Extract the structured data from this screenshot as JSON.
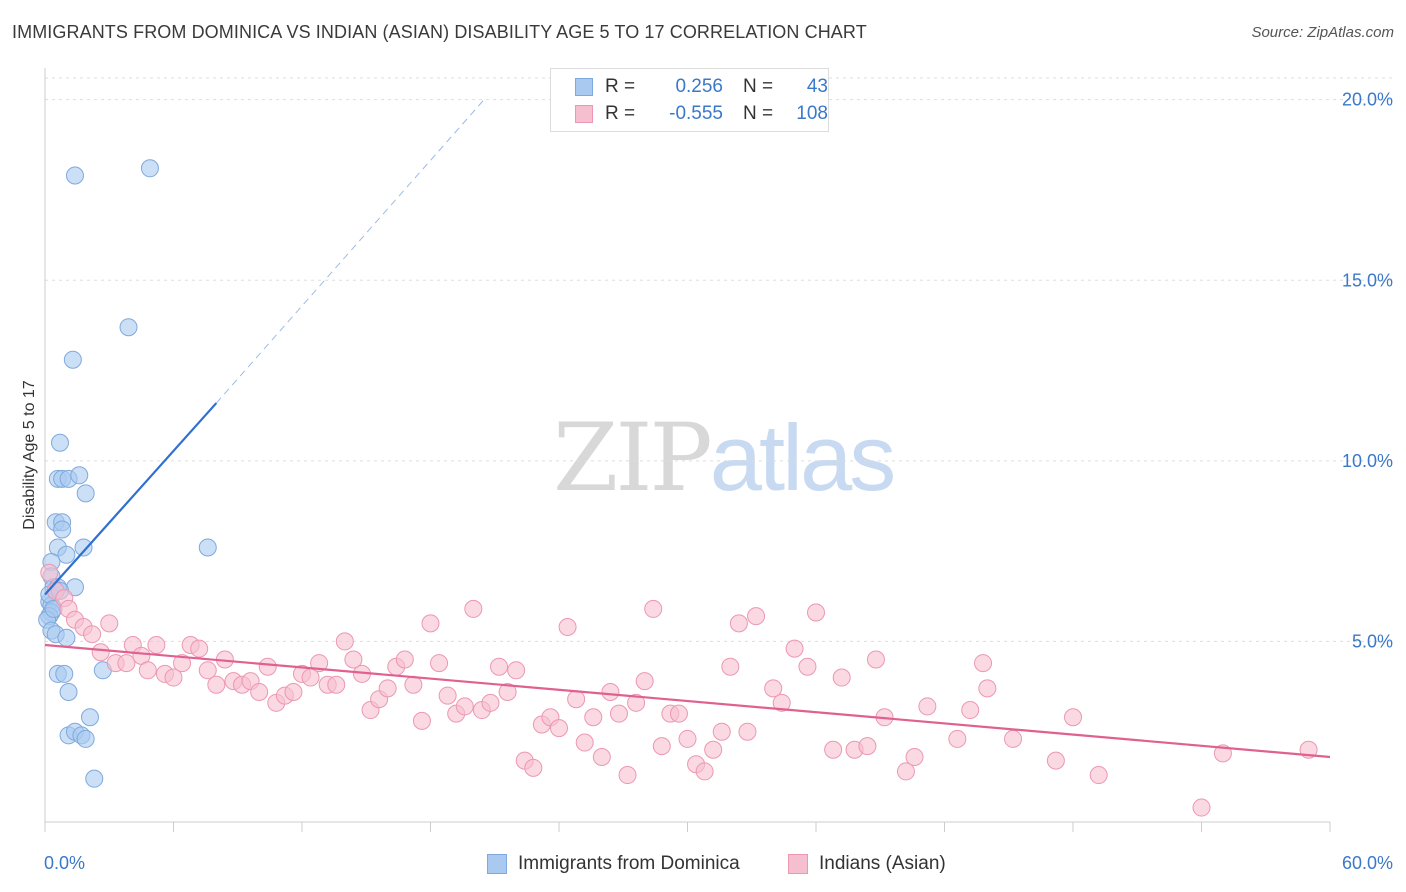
{
  "header": {
    "title": "IMMIGRANTS FROM DOMINICA VS INDIAN (ASIAN) DISABILITY AGE 5 TO 17 CORRELATION CHART",
    "source": "Source: ZipAtlas.com"
  },
  "watermark": {
    "zip": "ZIP",
    "atlas": "atlas"
  },
  "legend": {
    "rows": [
      {
        "r_label": "R =",
        "r_value": "0.256",
        "n_label": "N =",
        "n_value": "43"
      },
      {
        "r_label": "R =",
        "r_value": "-0.555",
        "n_label": "N =",
        "n_value": "108"
      }
    ]
  },
  "bottom_legend": {
    "items": [
      {
        "label": "Immigrants from Dominica"
      },
      {
        "label": "Indians (Asian)"
      }
    ]
  },
  "colors": {
    "blue_fill": "#a9c9f0",
    "blue_stroke": "#7fa9dc",
    "blue_line": "#2e6fd0",
    "pink_fill": "#f6bfd0",
    "pink_stroke": "#ec97b3",
    "pink_line": "#e0618f",
    "tick_text": "#3a78c9",
    "grid": "#dddddd"
  },
  "chart_data": {
    "type": "scatter",
    "title": "IMMIGRANTS FROM DOMINICA VS INDIAN (ASIAN) DISABILITY AGE 5 TO 17 CORRELATION CHART",
    "xlabel": "",
    "ylabel": "Disability Age 5 to 17",
    "xlim": [
      0,
      60
    ],
    "ylim": [
      0,
      20.6
    ],
    "x_tick_labels": [
      "0.0%",
      "60.0%"
    ],
    "y_ticks": [
      5,
      10,
      15,
      20
    ],
    "y_tick_labels": [
      "5.0%",
      "10.0%",
      "15.0%",
      "20.0%"
    ],
    "grid": true,
    "legend_position": "top-center",
    "series": [
      {
        "name": "Immigrants from Dominica",
        "color": "#a9c9f0",
        "r": 0.256,
        "n": 43,
        "trend": {
          "x0": 0.0,
          "y0": 6.3,
          "x1": 8.0,
          "y1": 11.6,
          "dashed_to": [
            20.5,
            20.0
          ]
        },
        "points": [
          [
            1.4,
            17.9
          ],
          [
            4.9,
            18.1
          ],
          [
            3.9,
            13.7
          ],
          [
            1.3,
            12.8
          ],
          [
            0.7,
            10.5
          ],
          [
            0.6,
            9.5
          ],
          [
            0.8,
            9.5
          ],
          [
            1.1,
            9.5
          ],
          [
            1.6,
            9.6
          ],
          [
            1.9,
            9.1
          ],
          [
            0.5,
            8.3
          ],
          [
            0.8,
            8.3
          ],
          [
            0.8,
            8.1
          ],
          [
            0.6,
            7.6
          ],
          [
            1.8,
            7.6
          ],
          [
            7.6,
            7.6
          ],
          [
            1.0,
            7.4
          ],
          [
            0.3,
            7.2
          ],
          [
            0.3,
            6.8
          ],
          [
            0.4,
            6.5
          ],
          [
            0.6,
            6.5
          ],
          [
            1.4,
            6.5
          ],
          [
            0.2,
            6.1
          ],
          [
            0.3,
            6.0
          ],
          [
            0.3,
            5.8
          ],
          [
            0.2,
            5.7
          ],
          [
            0.1,
            5.6
          ],
          [
            0.3,
            5.3
          ],
          [
            0.5,
            5.2
          ],
          [
            1.0,
            5.1
          ],
          [
            0.6,
            4.1
          ],
          [
            0.9,
            4.1
          ],
          [
            2.7,
            4.2
          ],
          [
            1.1,
            3.6
          ],
          [
            2.1,
            2.9
          ],
          [
            1.1,
            2.4
          ],
          [
            1.4,
            2.5
          ],
          [
            1.7,
            2.4
          ],
          [
            1.9,
            2.3
          ],
          [
            2.3,
            1.2
          ],
          [
            0.2,
            6.3
          ],
          [
            0.4,
            5.9
          ],
          [
            0.7,
            6.4
          ]
        ]
      },
      {
        "name": "Indians (Asian)",
        "color": "#f6bfd0",
        "r": -0.555,
        "n": 108,
        "trend": {
          "x0": 0.0,
          "y0": 4.9,
          "x1": 60.0,
          "y1": 1.8
        },
        "points": [
          [
            0.2,
            6.9
          ],
          [
            0.5,
            6.4
          ],
          [
            0.9,
            6.2
          ],
          [
            1.1,
            5.9
          ],
          [
            1.4,
            5.6
          ],
          [
            1.8,
            5.4
          ],
          [
            2.2,
            5.2
          ],
          [
            2.6,
            4.7
          ],
          [
            3.0,
            5.5
          ],
          [
            3.3,
            4.4
          ],
          [
            3.8,
            4.4
          ],
          [
            4.1,
            4.9
          ],
          [
            4.5,
            4.6
          ],
          [
            4.8,
            4.2
          ],
          [
            5.2,
            4.9
          ],
          [
            5.6,
            4.1
          ],
          [
            6.0,
            4.0
          ],
          [
            6.4,
            4.4
          ],
          [
            6.8,
            4.9
          ],
          [
            7.2,
            4.8
          ],
          [
            7.6,
            4.2
          ],
          [
            8.0,
            3.8
          ],
          [
            8.4,
            4.5
          ],
          [
            8.8,
            3.9
          ],
          [
            9.2,
            3.8
          ],
          [
            9.6,
            3.9
          ],
          [
            10.0,
            3.6
          ],
          [
            10.4,
            4.3
          ],
          [
            10.8,
            3.3
          ],
          [
            11.2,
            3.5
          ],
          [
            11.6,
            3.6
          ],
          [
            12.0,
            4.1
          ],
          [
            12.4,
            4.0
          ],
          [
            12.8,
            4.4
          ],
          [
            13.2,
            3.8
          ],
          [
            13.6,
            3.8
          ],
          [
            14.0,
            5.0
          ],
          [
            14.4,
            4.5
          ],
          [
            14.8,
            4.1
          ],
          [
            15.2,
            3.1
          ],
          [
            15.6,
            3.4
          ],
          [
            16.0,
            3.7
          ],
          [
            16.4,
            4.3
          ],
          [
            16.8,
            4.5
          ],
          [
            17.2,
            3.8
          ],
          [
            17.6,
            2.8
          ],
          [
            18.0,
            5.5
          ],
          [
            18.4,
            4.4
          ],
          [
            18.8,
            3.5
          ],
          [
            19.2,
            3.0
          ],
          [
            19.6,
            3.2
          ],
          [
            20.0,
            5.9
          ],
          [
            20.4,
            3.1
          ],
          [
            20.8,
            3.3
          ],
          [
            21.2,
            4.3
          ],
          [
            21.6,
            3.6
          ],
          [
            22.0,
            4.2
          ],
          [
            22.4,
            1.7
          ],
          [
            22.8,
            1.5
          ],
          [
            23.2,
            2.7
          ],
          [
            23.6,
            2.9
          ],
          [
            24.0,
            2.6
          ],
          [
            24.4,
            5.4
          ],
          [
            24.8,
            3.4
          ],
          [
            25.2,
            2.2
          ],
          [
            25.6,
            2.9
          ],
          [
            26.0,
            1.8
          ],
          [
            26.4,
            3.6
          ],
          [
            26.8,
            3.0
          ],
          [
            27.2,
            1.3
          ],
          [
            27.6,
            3.3
          ],
          [
            28.0,
            3.9
          ],
          [
            28.4,
            5.9
          ],
          [
            28.8,
            2.1
          ],
          [
            29.2,
            3.0
          ],
          [
            29.6,
            3.0
          ],
          [
            30.0,
            2.3
          ],
          [
            30.4,
            1.6
          ],
          [
            30.8,
            1.4
          ],
          [
            31.2,
            2.0
          ],
          [
            31.6,
            2.5
          ],
          [
            32.0,
            4.3
          ],
          [
            32.4,
            5.5
          ],
          [
            32.8,
            2.5
          ],
          [
            33.2,
            5.7
          ],
          [
            34.0,
            3.7
          ],
          [
            34.4,
            3.3
          ],
          [
            35.0,
            4.8
          ],
          [
            35.6,
            4.3
          ],
          [
            36.0,
            5.8
          ],
          [
            36.8,
            2.0
          ],
          [
            37.2,
            4.0
          ],
          [
            37.8,
            2.0
          ],
          [
            38.4,
            2.1
          ],
          [
            38.8,
            4.5
          ],
          [
            39.2,
            2.9
          ],
          [
            40.2,
            1.4
          ],
          [
            40.6,
            1.8
          ],
          [
            41.2,
            3.2
          ],
          [
            42.6,
            2.3
          ],
          [
            43.2,
            3.1
          ],
          [
            43.8,
            4.4
          ],
          [
            45.2,
            2.3
          ],
          [
            47.2,
            1.7
          ],
          [
            48.0,
            2.9
          ],
          [
            49.2,
            1.3
          ],
          [
            54.0,
            0.4
          ],
          [
            55.0,
            1.9
          ],
          [
            59.0,
            2.0
          ],
          [
            44.0,
            3.7
          ]
        ]
      }
    ]
  }
}
